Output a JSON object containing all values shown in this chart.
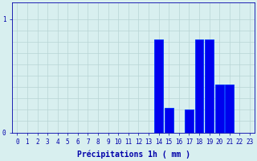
{
  "hours": [
    0,
    1,
    2,
    3,
    4,
    5,
    6,
    7,
    8,
    9,
    10,
    11,
    12,
    13,
    14,
    15,
    16,
    17,
    18,
    19,
    20,
    21,
    22,
    23
  ],
  "values": [
    0,
    0,
    0,
    0,
    0,
    0,
    0,
    0,
    0,
    0,
    0,
    0,
    0,
    0,
    0.82,
    0.22,
    0,
    0.2,
    0.82,
    0.82,
    0.42,
    0.42,
    0,
    0
  ],
  "bar_color": "#0000ee",
  "bar_edge_color": "#0044ff",
  "background_color": "#d8efef",
  "grid_color": "#b8d4d4",
  "axis_color": "#0000aa",
  "xlabel": "Précipitations 1h ( mm )",
  "xlabel_fontsize": 7,
  "ytick_labels": [
    "0",
    "1"
  ],
  "ytick_values": [
    0,
    1
  ],
  "ylim": [
    0,
    1.15
  ],
  "tick_color": "#0000aa",
  "tick_fontsize": 5.5
}
